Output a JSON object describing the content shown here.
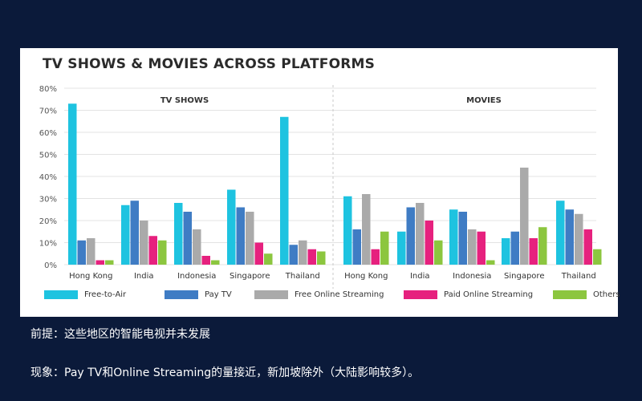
{
  "colors": {
    "free_to_air": "#1ec3e0",
    "pay_tv": "#3f7cc4",
    "free_online": "#aaaaaa",
    "paid_online": "#e6217e",
    "others": "#8cc63f"
  },
  "chart_data": {
    "type": "bar",
    "title": "TV SHOWS & MOVIES ACROSS PLATFORMS",
    "ylim": [
      0,
      80
    ],
    "yticks": [
      "0%",
      "10%",
      "20%",
      "30%",
      "40%",
      "50%",
      "60%",
      "70%",
      "80%"
    ],
    "grid": true,
    "legend_position": "bottom",
    "series_names": [
      "Free-to-Air",
      "Pay TV",
      "Free Online Streaming",
      "Paid Online Streaming",
      "Others"
    ],
    "panels": [
      {
        "label": "TV SHOWS",
        "categories": [
          "Hong Kong",
          "India",
          "Indonesia",
          "Singapore",
          "Thailand"
        ],
        "values": [
          [
            73,
            11,
            12,
            2,
            2
          ],
          [
            27,
            29,
            20,
            13,
            11
          ],
          [
            28,
            24,
            16,
            4,
            2
          ],
          [
            34,
            26,
            24,
            10,
            5
          ],
          [
            67,
            9,
            11,
            7,
            6
          ]
        ]
      },
      {
        "label": "MOVIES",
        "categories": [
          "Hong Kong",
          "India",
          "Indonesia",
          "Singapore",
          "Thailand"
        ],
        "values": [
          [
            31,
            16,
            32,
            7,
            15
          ],
          [
            15,
            26,
            28,
            20,
            11
          ],
          [
            25,
            24,
            16,
            15,
            2
          ],
          [
            12,
            15,
            44,
            12,
            17
          ],
          [
            29,
            25,
            23,
            16,
            7
          ]
        ]
      }
    ]
  },
  "notes": {
    "premise": "前提：这些地区的智能电视并未发展",
    "phenomenon": "现象：Pay TV和Online Streaming的量接近，新加坡除外（大陆影响较多）。"
  }
}
